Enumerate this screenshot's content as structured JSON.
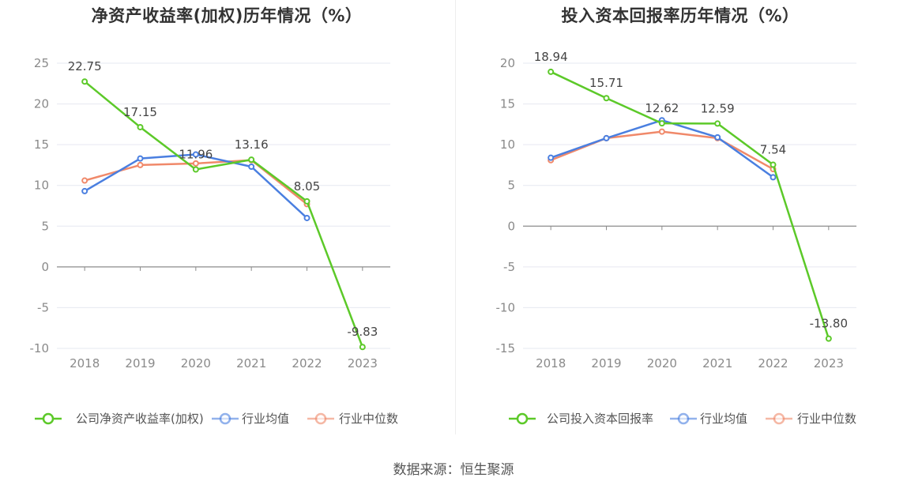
{
  "source_text": "数据来源：恒生聚源",
  "chart_data": [
    {
      "type": "line",
      "title": "净资产收益率(加权)历年情况（%）",
      "categories": [
        "2018",
        "2019",
        "2020",
        "2021",
        "2022",
        "2023"
      ],
      "ylim": [
        -10,
        25
      ],
      "yticks": [
        -10,
        -5,
        0,
        5,
        10,
        15,
        20,
        25
      ],
      "grid": true,
      "legend_position": "bottom",
      "series": [
        {
          "name": "公司净资产收益率(加权)",
          "color": "#5cc929",
          "values": [
            22.75,
            17.15,
            11.96,
            13.16,
            8.05,
            -9.83
          ],
          "labels": [
            "22.75",
            "17.15",
            "11.96",
            "13.16",
            "8.05",
            "-9.83"
          ]
        },
        {
          "name": "行业均值",
          "color": "#4a7fe0",
          "values": [
            9.3,
            13.3,
            13.8,
            12.3,
            6.0,
            null
          ]
        },
        {
          "name": "行业中位数",
          "color": "#f0896a",
          "values": [
            10.6,
            12.5,
            12.7,
            13.1,
            7.7,
            null
          ]
        }
      ]
    },
    {
      "type": "line",
      "title": "投入资本回报率历年情况（%）",
      "categories": [
        "2018",
        "2019",
        "2020",
        "2021",
        "2022",
        "2023"
      ],
      "ylim": [
        -15,
        20
      ],
      "yticks": [
        -15,
        -10,
        -5,
        0,
        5,
        10,
        15,
        20
      ],
      "grid": true,
      "legend_position": "bottom",
      "series": [
        {
          "name": "公司投入资本回报率",
          "color": "#5cc929",
          "values": [
            18.94,
            15.71,
            12.62,
            12.59,
            7.54,
            -13.8
          ],
          "labels": [
            "18.94",
            "15.71",
            "12.62",
            "12.59",
            "7.54",
            "-13.80"
          ]
        },
        {
          "name": "行业均值",
          "color": "#4a7fe0",
          "values": [
            8.4,
            10.8,
            13.0,
            10.9,
            6.0,
            null
          ]
        },
        {
          "name": "行业中位数",
          "color": "#f0896a",
          "values": [
            8.1,
            10.8,
            11.6,
            10.8,
            7.0,
            null
          ]
        }
      ]
    }
  ]
}
